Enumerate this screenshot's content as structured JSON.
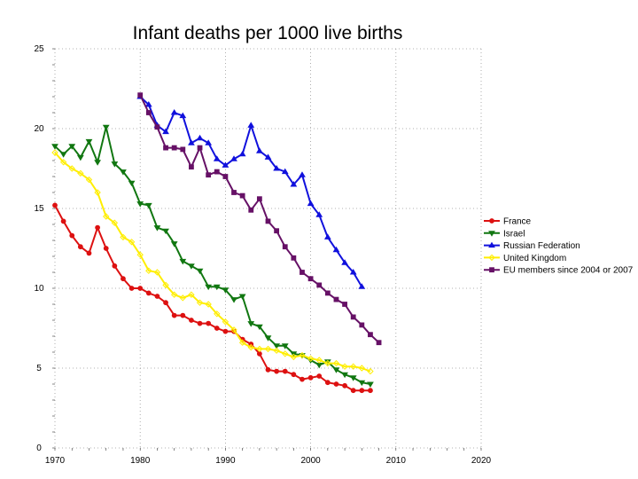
{
  "chart_data": {
    "type": "line",
    "title": "Infant deaths per 1000 live births",
    "xlabel": "",
    "ylabel": "",
    "xlim": [
      1970,
      2020
    ],
    "ylim": [
      0,
      25
    ],
    "x_ticks": [
      1970,
      1980,
      1990,
      2000,
      2010,
      2020
    ],
    "y_ticks": [
      0,
      5,
      10,
      15,
      20,
      25
    ],
    "grid": true,
    "legend_position": "right",
    "series": [
      {
        "name": "France",
        "color": "#dd1111",
        "marker": "circle",
        "x": [
          1970,
          1971,
          1972,
          1973,
          1974,
          1975,
          1976,
          1977,
          1978,
          1979,
          1980,
          1981,
          1982,
          1983,
          1984,
          1985,
          1986,
          1987,
          1988,
          1989,
          1990,
          1991,
          1992,
          1993,
          1994,
          1995,
          1996,
          1997,
          1998,
          1999,
          2000,
          2001,
          2002,
          2003,
          2004,
          2005,
          2006,
          2007
        ],
        "y": [
          15.2,
          14.2,
          13.3,
          12.6,
          12.2,
          13.8,
          12.5,
          11.4,
          10.6,
          10.0,
          10.0,
          9.7,
          9.5,
          9.1,
          8.3,
          8.3,
          8.0,
          7.8,
          7.8,
          7.5,
          7.3,
          7.3,
          6.8,
          6.5,
          5.9,
          4.9,
          4.8,
          4.8,
          4.6,
          4.3,
          4.4,
          4.5,
          4.1,
          4.0,
          3.9,
          3.6,
          3.6,
          3.6
        ]
      },
      {
        "name": "Israel",
        "color": "#117711",
        "marker": "triangle-down",
        "x": [
          1970,
          1971,
          1972,
          1973,
          1974,
          1975,
          1976,
          1977,
          1978,
          1979,
          1980,
          1981,
          1982,
          1983,
          1984,
          1985,
          1986,
          1987,
          1988,
          1989,
          1990,
          1991,
          1992,
          1993,
          1994,
          1995,
          1996,
          1997,
          1998,
          1999,
          2000,
          2001,
          2002,
          2003,
          2004,
          2005,
          2006,
          2007
        ],
        "y": [
          18.9,
          18.4,
          18.9,
          18.2,
          19.2,
          17.9,
          20.1,
          17.8,
          17.3,
          16.6,
          15.3,
          15.2,
          13.8,
          13.6,
          12.8,
          11.7,
          11.4,
          11.1,
          10.1,
          10.1,
          9.9,
          9.3,
          9.5,
          7.8,
          7.6,
          6.9,
          6.4,
          6.4,
          5.9,
          5.8,
          5.5,
          5.2,
          5.4,
          4.9,
          4.6,
          4.4,
          4.1,
          4.0
        ]
      },
      {
        "name": "Russian Federation",
        "color": "#1111dd",
        "marker": "triangle-up",
        "x": [
          1980,
          1981,
          1982,
          1983,
          1984,
          1985,
          1986,
          1987,
          1988,
          1989,
          1990,
          1991,
          1992,
          1993,
          1994,
          1995,
          1996,
          1997,
          1998,
          1999,
          2000,
          2001,
          2002,
          2003,
          2004,
          2005,
          2006
        ],
        "y": [
          22.0,
          21.5,
          20.2,
          19.8,
          21.0,
          20.8,
          19.1,
          19.4,
          19.1,
          18.1,
          17.7,
          18.1,
          18.4,
          20.2,
          18.6,
          18.2,
          17.5,
          17.3,
          16.5,
          17.1,
          15.3,
          14.6,
          13.2,
          12.4,
          11.6,
          11.0,
          10.1
        ]
      },
      {
        "name": "United Kingdom",
        "color": "#ffee00",
        "marker": "diamond",
        "x": [
          1970,
          1971,
          1972,
          1973,
          1974,
          1975,
          1976,
          1977,
          1978,
          1979,
          1980,
          1981,
          1982,
          1983,
          1984,
          1985,
          1986,
          1987,
          1988,
          1989,
          1990,
          1991,
          1992,
          1993,
          1994,
          1995,
          1996,
          1997,
          1998,
          1999,
          2000,
          2001,
          2002,
          2003,
          2004,
          2005,
          2006,
          2007
        ],
        "y": [
          18.5,
          17.9,
          17.5,
          17.2,
          16.8,
          16.0,
          14.5,
          14.1,
          13.2,
          12.9,
          12.1,
          11.1,
          11.0,
          10.2,
          9.6,
          9.4,
          9.6,
          9.1,
          9.0,
          8.4,
          7.9,
          7.4,
          6.6,
          6.3,
          6.2,
          6.2,
          6.1,
          5.9,
          5.7,
          5.8,
          5.6,
          5.5,
          5.3,
          5.3,
          5.1,
          5.1,
          5.0,
          4.8
        ]
      },
      {
        "name": "EU members since 2004 or 2007",
        "color": "#661166",
        "marker": "square",
        "x": [
          1980,
          1981,
          1982,
          1983,
          1984,
          1985,
          1986,
          1987,
          1988,
          1989,
          1990,
          1991,
          1992,
          1993,
          1994,
          1995,
          1996,
          1997,
          1998,
          1999,
          2000,
          2001,
          2002,
          2003,
          2004,
          2005,
          2006,
          2007,
          2008
        ],
        "y": [
          22.1,
          21.0,
          20.1,
          18.8,
          18.8,
          18.7,
          17.6,
          18.8,
          17.1,
          17.3,
          17.0,
          16.0,
          15.8,
          14.9,
          15.6,
          14.2,
          13.6,
          12.6,
          11.9,
          11.0,
          10.6,
          10.2,
          9.7,
          9.3,
          9.0,
          8.2,
          7.7,
          7.1,
          6.6
        ]
      }
    ]
  }
}
